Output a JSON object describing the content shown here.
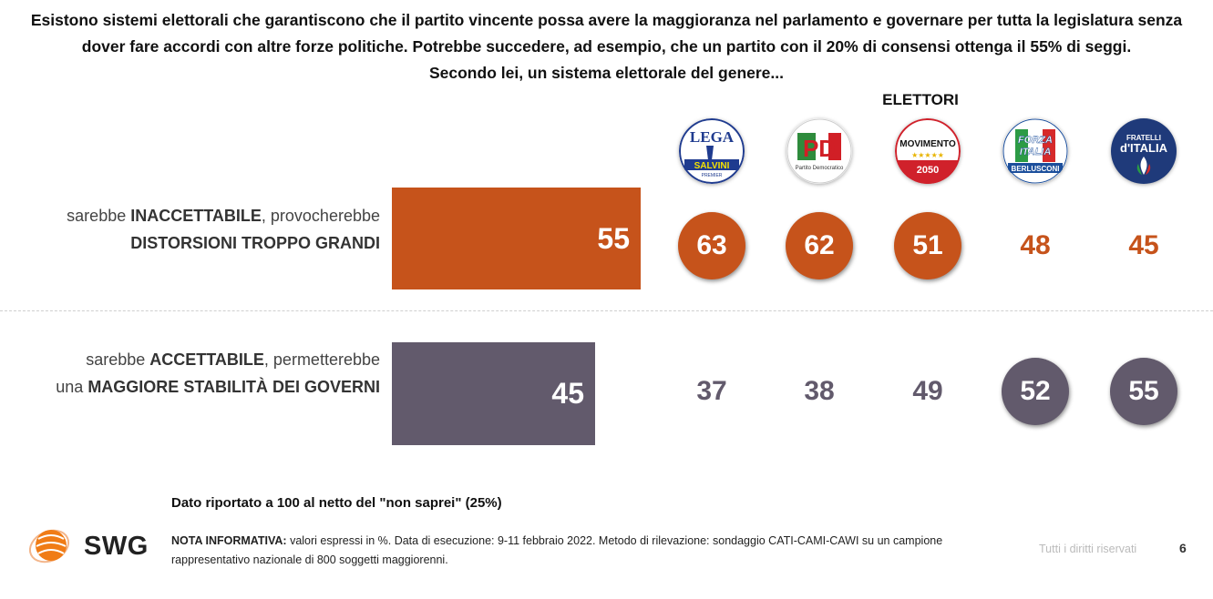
{
  "question": {
    "line1": "Esistono sistemi elettorali che garantiscono che il partito vincente possa avere la maggioranza nel parlamento e governare per tutta la legislatura senza",
    "line2": "dover fare accordi con altre forze politiche. Potrebbe succedere, ad esempio, che un partito con il 20% di consensi ottenga il 55% di seggi.",
    "line3": "Secondo lei, un sistema elettorale del genere..."
  },
  "section_label": "ELETTORI",
  "parties": [
    {
      "id": "lega",
      "logo_text": [
        "LEGA",
        "SALVINI",
        "PREMIER"
      ],
      "icon": "lega-logo"
    },
    {
      "id": "pd",
      "logo_text": [
        "PD",
        "Partito Democratico"
      ],
      "icon": "pd-logo"
    },
    {
      "id": "m5s",
      "logo_text": [
        "MOVIMENTO",
        "★★★★★",
        "2050"
      ],
      "icon": "m5s-logo"
    },
    {
      "id": "fi",
      "logo_text": [
        "FORZA",
        "ITALIA",
        "BERLUSCONI"
      ],
      "icon": "forza-italia-logo"
    },
    {
      "id": "fdi",
      "logo_text": [
        "FRATELLI",
        "d'ITALIA"
      ],
      "icon": "fratelli-italia-logo"
    }
  ],
  "rows": {
    "inaccettabile": {
      "pre": "sarebbe ",
      "bold1": "INACCETTABILE",
      "post": ", provocherebbe",
      "line2": "DISTORSIONI TROPPO GRANDI"
    },
    "accettabile": {
      "pre": "sarebbe ",
      "bold1": "ACCETTABILE",
      "post": ", permetterebbe",
      "line2_pre": "una ",
      "line2_bold": "MAGGIORE STABILITÀ DEI GOVERNI"
    }
  },
  "chart_data": {
    "type": "bar",
    "categories": [
      "sarebbe INACCETTABILE, provocherebbe DISTORSIONI TROPPO GRANDI",
      "sarebbe ACCETTABILE, permetterebbe una MAGGIORE STABILITÀ DEI GOVERNI"
    ],
    "values": [
      55,
      45
    ],
    "colors": [
      "#c6531b",
      "#625a6c"
    ],
    "party_values": {
      "categories": [
        "Lega",
        "PD",
        "M5S",
        "Forza Italia",
        "Fratelli d'Italia"
      ],
      "inaccettabile": [
        63,
        62,
        51,
        48,
        45
      ],
      "accettabile": [
        37,
        38,
        49,
        52,
        55
      ],
      "circled_inaccettabile": [
        true,
        true,
        true,
        false,
        false
      ],
      "circled_accettabile": [
        false,
        false,
        false,
        true,
        true
      ]
    }
  },
  "labels": {
    "total_inaccettabile": "55",
    "total_accettabile": "45",
    "lega_inacc": "63",
    "pd_inacc": "62",
    "m5s_inacc": "51",
    "fi_inacc": "48",
    "fdi_inacc": "45",
    "lega_acc": "37",
    "pd_acc": "38",
    "m5s_acc": "49",
    "fi_acc": "52",
    "fdi_acc": "55"
  },
  "notes": {
    "main": "Dato riportato a 100 al netto del \"non saprei\" (25%)",
    "info_bold": "NOTA INFORMATIVA:",
    "info_text": " valori espressi in %. Data di esecuzione: 9-11 febbraio 2022. Metodo di rilevazione: sondaggio CATI-CAMI-CAWI su un campione rappresentativo nazionale di 800 soggetti maggiorenni."
  },
  "footer": {
    "brand": "SWG",
    "rights": "Tutti i diritti riservati",
    "page": "6"
  }
}
